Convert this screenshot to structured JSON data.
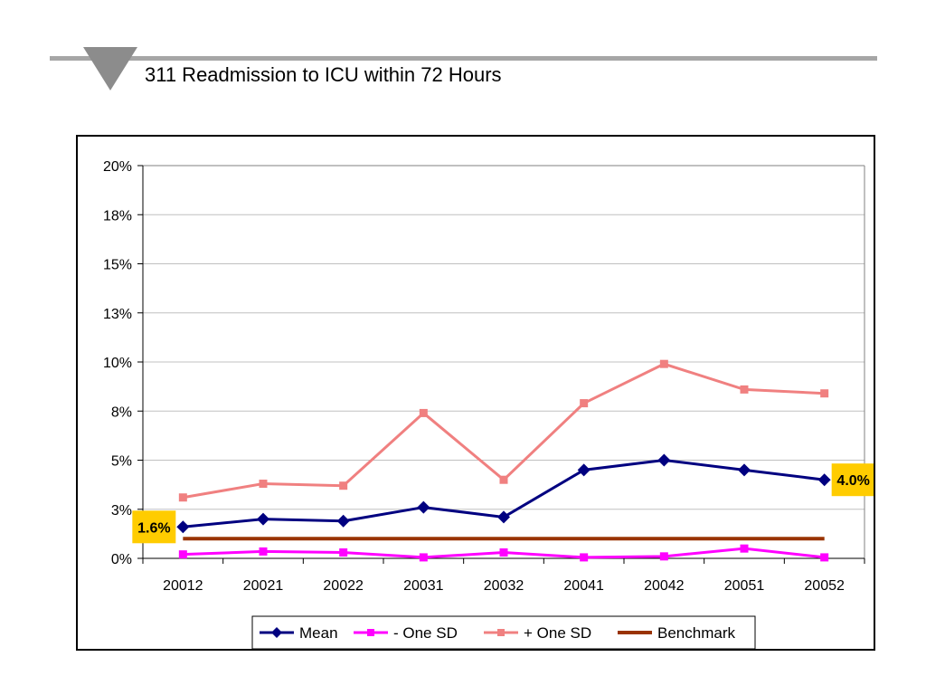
{
  "page": {
    "title": "311 Readmission to ICU within 72 Hours"
  },
  "chart_data": {
    "type": "line",
    "title": "",
    "xlabel": "",
    "ylabel": "",
    "categories": [
      "20012",
      "20021",
      "20022",
      "20031",
      "20032",
      "20041",
      "20042",
      "20051",
      "20052"
    ],
    "ylim": [
      0,
      0.2
    ],
    "yticks": [
      0,
      0.025,
      0.05,
      0.075,
      0.1,
      0.125,
      0.15,
      0.175,
      0.2
    ],
    "ytick_labels": [
      "0%",
      "3%",
      "5%",
      "8%",
      "10%",
      "13%",
      "15%",
      "18%",
      "20%"
    ],
    "grid": true,
    "legend_position": "bottom",
    "series": [
      {
        "name": "Mean",
        "color": "#000080",
        "marker": "diamond",
        "values": [
          0.016,
          0.02,
          0.019,
          0.026,
          0.021,
          0.045,
          0.05,
          0.045,
          0.04
        ]
      },
      {
        "name": "- One SD",
        "color": "#ff00ff",
        "marker": "square",
        "values": [
          0.002,
          0.0035,
          0.003,
          0.0005,
          0.003,
          0.0005,
          0.001,
          0.005,
          0.0005
        ]
      },
      {
        "name": "+ One SD",
        "color": "#f08080",
        "marker": "square",
        "values": [
          0.031,
          0.038,
          0.037,
          0.074,
          0.04,
          0.079,
          0.099,
          0.086,
          0.084
        ]
      },
      {
        "name": "Benchmark",
        "color": "#993300",
        "marker": "none",
        "values": [
          0.01,
          0.01,
          0.01,
          0.01,
          0.01,
          0.01,
          0.01,
          0.01,
          0.01
        ]
      }
    ],
    "annotations": [
      {
        "text": "1.6%",
        "category": "20012",
        "series": "Mean",
        "side": "left",
        "bg": "#ffcc00"
      },
      {
        "text": "4.0%",
        "category": "20052",
        "series": "Mean",
        "side": "right",
        "bg": "#ffcc00"
      }
    ]
  }
}
